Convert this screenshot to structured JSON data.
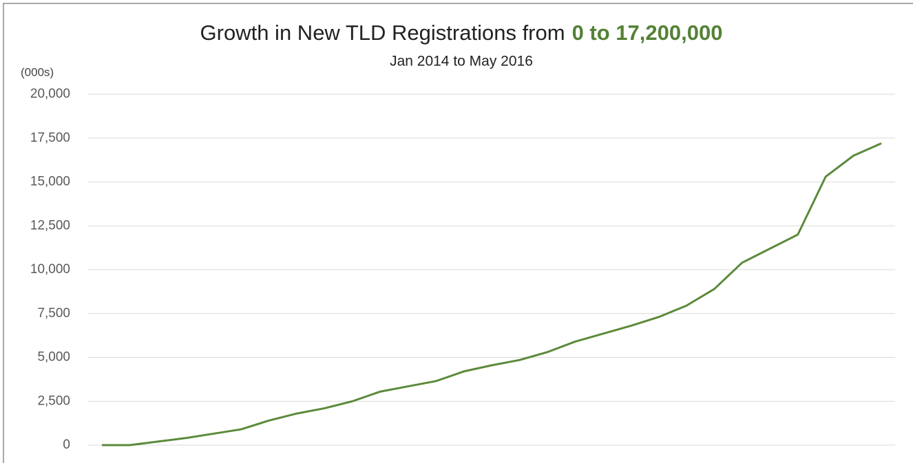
{
  "chart_data": {
    "type": "line",
    "title": "Growth in New TLD Registrations from",
    "title_highlight": "0 to 17,200,000",
    "subtitle": "Jan 2014 to May 2016",
    "y_axis_label": "(000s)",
    "categories": [
      null,
      null,
      null,
      null,
      null,
      null,
      null,
      null,
      null,
      null,
      null,
      null,
      null,
      null,
      null,
      null,
      null,
      null,
      null,
      null,
      null,
      null,
      null,
      null,
      null,
      null,
      null,
      null,
      null
    ],
    "series": [
      {
        "name": "New TLD registrations",
        "color": "#5b8a3a",
        "values": [
          0,
          0,
          200,
          400,
          650,
          900,
          1400,
          1800,
          2100,
          2500,
          3050,
          3350,
          3650,
          4200,
          4550,
          4850,
          5300,
          5900,
          6350,
          6800,
          7300,
          7950,
          8900,
          10400,
          11200,
          12000,
          15300,
          16500,
          17200
        ]
      }
    ],
    "ylim": [
      0,
      20000
    ],
    "yticks": [
      0,
      {
        "value": 2500,
        "label": "2,500"
      },
      {
        "value": 5000,
        "label": "5,000"
      },
      {
        "value": 7500,
        "label": "7,500"
      },
      {
        "value": 10000,
        "label": "10,000"
      },
      {
        "value": 12500,
        "label": "12,500"
      },
      {
        "value": 15000,
        "label": "15,000"
      },
      {
        "value": 17500,
        "label": "17,500"
      },
      {
        "value": 20000,
        "label": "20,000"
      }
    ],
    "grid": true,
    "highlight_color": "#538135"
  }
}
